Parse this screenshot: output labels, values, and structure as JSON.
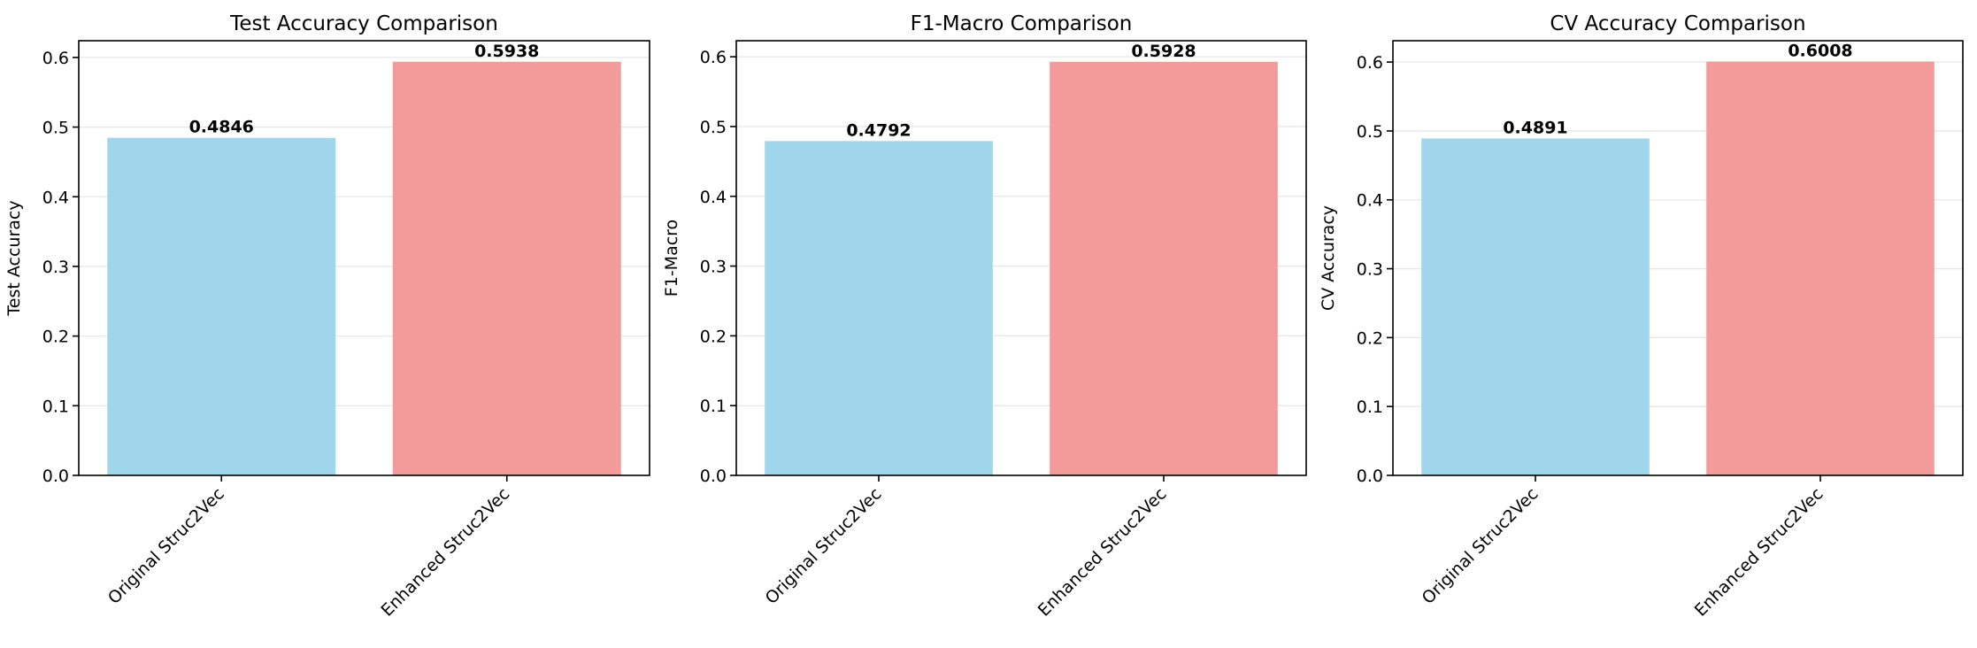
{
  "chart_data": [
    {
      "type": "bar",
      "title": "Test Accuracy Comparison",
      "xlabel": "",
      "ylabel": "Test Accuracy",
      "categories": [
        "Original Struc2Vec",
        "Enhanced Struc2Vec"
      ],
      "values": [
        0.4846,
        0.5938
      ],
      "value_labels": [
        "0.4846",
        "0.5938"
      ],
      "colors": [
        "#9fd6ec",
        "#f39a9a"
      ],
      "ylim": [
        0,
        0.624
      ],
      "yticks": [
        0.0,
        0.1,
        0.2,
        0.3,
        0.4,
        0.5,
        0.6
      ],
      "ytick_labels": [
        "0.0",
        "0.1",
        "0.2",
        "0.3",
        "0.4",
        "0.5",
        "0.6"
      ],
      "grid": "y",
      "xtick_rotation": 45
    },
    {
      "type": "bar",
      "title": "F1-Macro Comparison",
      "xlabel": "",
      "ylabel": "F1-Macro",
      "categories": [
        "Original Struc2Vec",
        "Enhanced Struc2Vec"
      ],
      "values": [
        0.4792,
        0.5928
      ],
      "value_labels": [
        "0.4792",
        "0.5928"
      ],
      "colors": [
        "#9fd6ec",
        "#f39a9a"
      ],
      "ylim": [
        0,
        0.623
      ],
      "yticks": [
        0.0,
        0.1,
        0.2,
        0.3,
        0.4,
        0.5,
        0.6
      ],
      "ytick_labels": [
        "0.0",
        "0.1",
        "0.2",
        "0.3",
        "0.4",
        "0.5",
        "0.6"
      ],
      "grid": "y",
      "xtick_rotation": 45
    },
    {
      "type": "bar",
      "title": "CV Accuracy Comparison",
      "xlabel": "",
      "ylabel": "CV Accuracy",
      "categories": [
        "Original Struc2Vec",
        "Enhanced Struc2Vec"
      ],
      "values": [
        0.4891,
        0.6008
      ],
      "value_labels": [
        "0.4891",
        "0.6008"
      ],
      "colors": [
        "#9fd6ec",
        "#f39a9a"
      ],
      "ylim": [
        0,
        0.631
      ],
      "yticks": [
        0.0,
        0.1,
        0.2,
        0.3,
        0.4,
        0.5,
        0.6
      ],
      "ytick_labels": [
        "0.0",
        "0.1",
        "0.2",
        "0.3",
        "0.4",
        "0.5",
        "0.6"
      ],
      "grid": "y",
      "xtick_rotation": 45
    }
  ]
}
